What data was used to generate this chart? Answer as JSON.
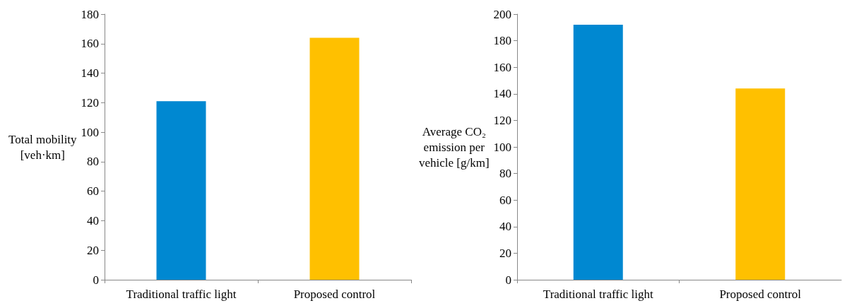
{
  "chart_data": [
    {
      "type": "bar",
      "ylabel": "Total mobility [veh·km]",
      "categories": [
        "Traditional traffic light",
        "Proposed control"
      ],
      "values": [
        121,
        164
      ],
      "colors": [
        "#0088d1",
        "#ffc000"
      ],
      "ylim": [
        0,
        180
      ],
      "yticks": [
        0,
        20,
        40,
        60,
        80,
        100,
        120,
        140,
        160,
        180
      ],
      "grid": false
    },
    {
      "type": "bar",
      "ylabel": "Average CO₂ emission per vehicle [g/km]",
      "categories": [
        "Traditional traffic light",
        "Proposed control"
      ],
      "values": [
        192,
        144
      ],
      "colors": [
        "#0088d1",
        "#ffc000"
      ],
      "ylim": [
        0,
        200
      ],
      "yticks": [
        0,
        20,
        40,
        60,
        80,
        100,
        120,
        140,
        160,
        180,
        200
      ],
      "grid": false
    }
  ]
}
